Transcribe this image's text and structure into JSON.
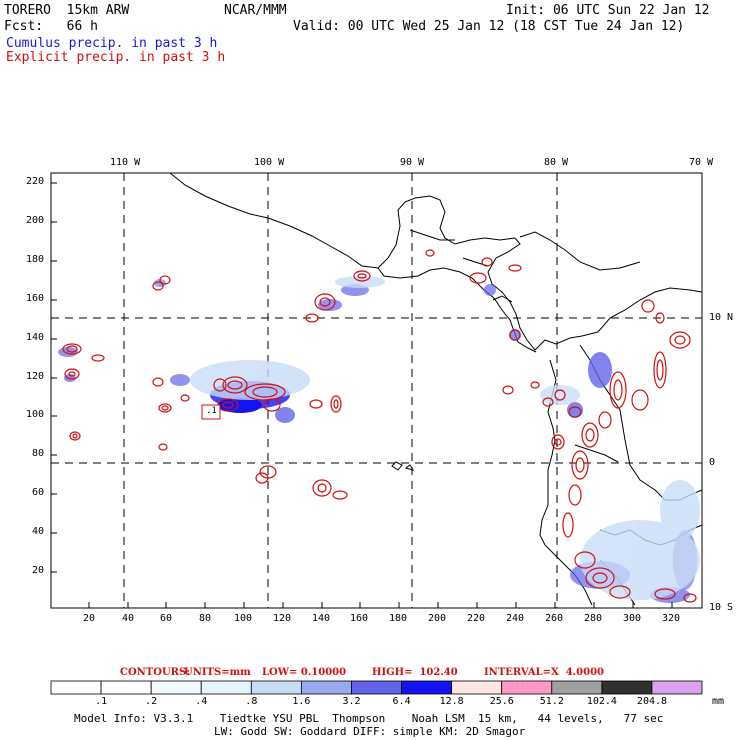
{
  "header": {
    "model": "TORERO  15km ARW",
    "org": "NCAR/MMM",
    "init": "Init: 06 UTC Sun 22 Jan 12",
    "fcst": "Fcst:   66 h",
    "valid": "Valid: 00 UTC Wed 25 Jan 12 (18 CST Tue 24 Jan 12)",
    "legend_cumulus": "Cumulus precip. in past 3 h",
    "legend_explicit": "Explicit precip. in past 3 h"
  },
  "axes": {
    "top_lon_labels": [
      "110 W",
      "100 W",
      "90 W",
      "80 W",
      "70 W"
    ],
    "right_lat_labels": [
      "10 N",
      "0",
      "10 S"
    ],
    "left_y_ticks": [
      "220",
      "200",
      "180",
      "160",
      "140",
      "120",
      "100",
      "80",
      "60",
      "40",
      "20"
    ],
    "bottom_x_ticks": [
      "20",
      "40",
      "60",
      "80",
      "100",
      "120",
      "140",
      "160",
      "180",
      "200",
      "220",
      "240",
      "260",
      "280",
      "300",
      "320"
    ]
  },
  "marker_label": ".1",
  "contours_info": {
    "contours": "CONTOURS:",
    "units": "UNITS=mm",
    "low": "LOW= 0.10000",
    "high": "HIGH=  102.40",
    "interval": "INTERVAL=X  4.0000"
  },
  "colorbar": {
    "labels": [
      ".1",
      ".2",
      ".4",
      ".8",
      "1.6",
      "3.2",
      "6.4",
      "12.8",
      "25.6",
      "51.2",
      "102.4",
      "204.8"
    ],
    "unit": "mm",
    "colors": [
      "#ffffff",
      "#ffffff",
      "#f0fafd",
      "#e6f4fb",
      "#c8dcf6",
      "#9aaaf0",
      "#6464e8",
      "#1414f0",
      "#ffe6e6",
      "#ff9ac8",
      "#a0a0a0",
      "#303030",
      "#dca0f0"
    ]
  },
  "footer": {
    "line1": "Model Info: V3.3.1    Tiedtke YSU PBL  Thompson    Noah LSM  15 km,   44 levels,   77 sec",
    "line2": "LW: Godd SW: Goddard DIFF: simple KM: 2D Smagor"
  },
  "colors": {
    "contour": "#d01010",
    "cumulus_label": "#1a1ad0",
    "coast": "#000000"
  }
}
